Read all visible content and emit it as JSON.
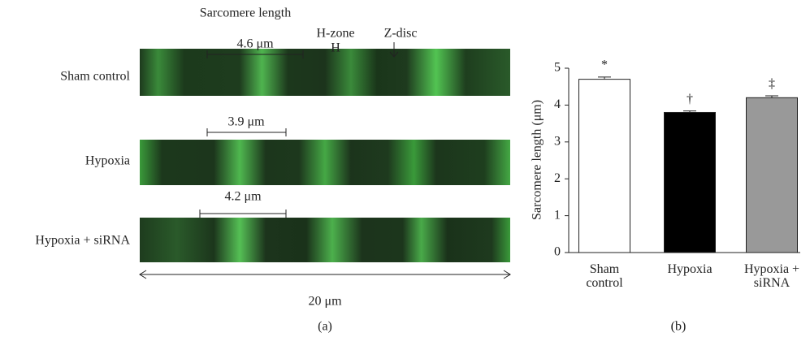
{
  "panel_a": {
    "title": "Sarcomere length",
    "rows": [
      "Sham control",
      "Hypoxia",
      "Hypoxia + siRNA"
    ],
    "scale_labels": [
      "4.6 μm",
      "3.9 μm",
      "4.2 μm"
    ],
    "h_zone": "H-zone",
    "h": "H",
    "z_disc": "Z-disc",
    "width_label": "20 μm",
    "panel_label": "(a)"
  },
  "panel_b_label": "(b)",
  "chart_data": {
    "type": "bar",
    "ylabel": "Sarcomere length (μm)",
    "categories": [
      "Sham control",
      "Hypoxia",
      "Hypoxia + siRNA"
    ],
    "values": [
      4.7,
      3.8,
      4.2
    ],
    "errors": [
      0.06,
      0.04,
      0.05
    ],
    "colors": [
      "#ffffff",
      "#000000",
      "#999999"
    ],
    "annotations": [
      "*",
      "†",
      "‡"
    ],
    "ylim": [
      0,
      5
    ],
    "yticks": [
      0,
      1,
      2,
      3,
      4,
      5
    ]
  }
}
